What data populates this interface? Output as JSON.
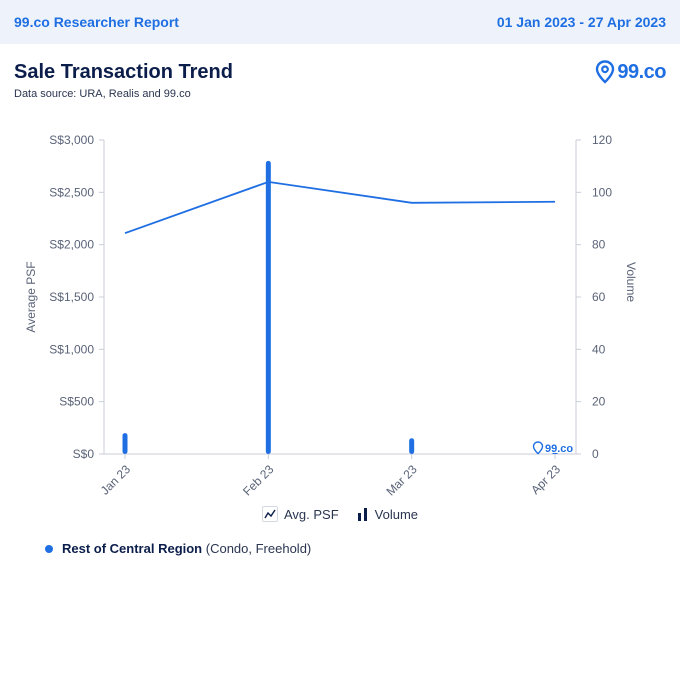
{
  "header": {
    "report_title": "99.co Researcher Report",
    "date_range": "01 Jan 2023 - 27 Apr 2023"
  },
  "main": {
    "title": "Sale Transaction Trend",
    "subtitle": "Data source: URA, Realis and 99.co",
    "brand": "99.co"
  },
  "legend": {
    "avg_psf_label": "Avg. PSF",
    "volume_label": "Volume"
  },
  "region": {
    "name": "Rest of Central Region",
    "detail": "(Condo, Freehold)"
  },
  "colors": {
    "accent": "#1f6fe3",
    "axis_text": "#5a6378",
    "header_bg": "#eef3fb"
  },
  "chart_data": {
    "type": "bar",
    "categories": [
      "Jan 23",
      "Feb 23",
      "Mar 23",
      "Apr 23"
    ],
    "series": [
      {
        "name": "Avg. PSF",
        "type": "line",
        "axis": "left",
        "values": [
          2110,
          2600,
          2400,
          2410
        ]
      },
      {
        "name": "Volume",
        "type": "bar",
        "axis": "right",
        "values": [
          8,
          112,
          6,
          0
        ]
      }
    ],
    "ylabel": "Average PSF",
    "y2label": "Volume",
    "ylim": [
      0,
      3000
    ],
    "y2lim": [
      0,
      120
    ],
    "yticks": [
      "S$0",
      "S$500",
      "S$1,000",
      "S$1,500",
      "S$2,000",
      "S$2,500",
      "S$3,000"
    ],
    "y2ticks": [
      "0",
      "20",
      "40",
      "60",
      "80",
      "100",
      "120"
    ],
    "watermark": "99.co",
    "grid": false
  }
}
